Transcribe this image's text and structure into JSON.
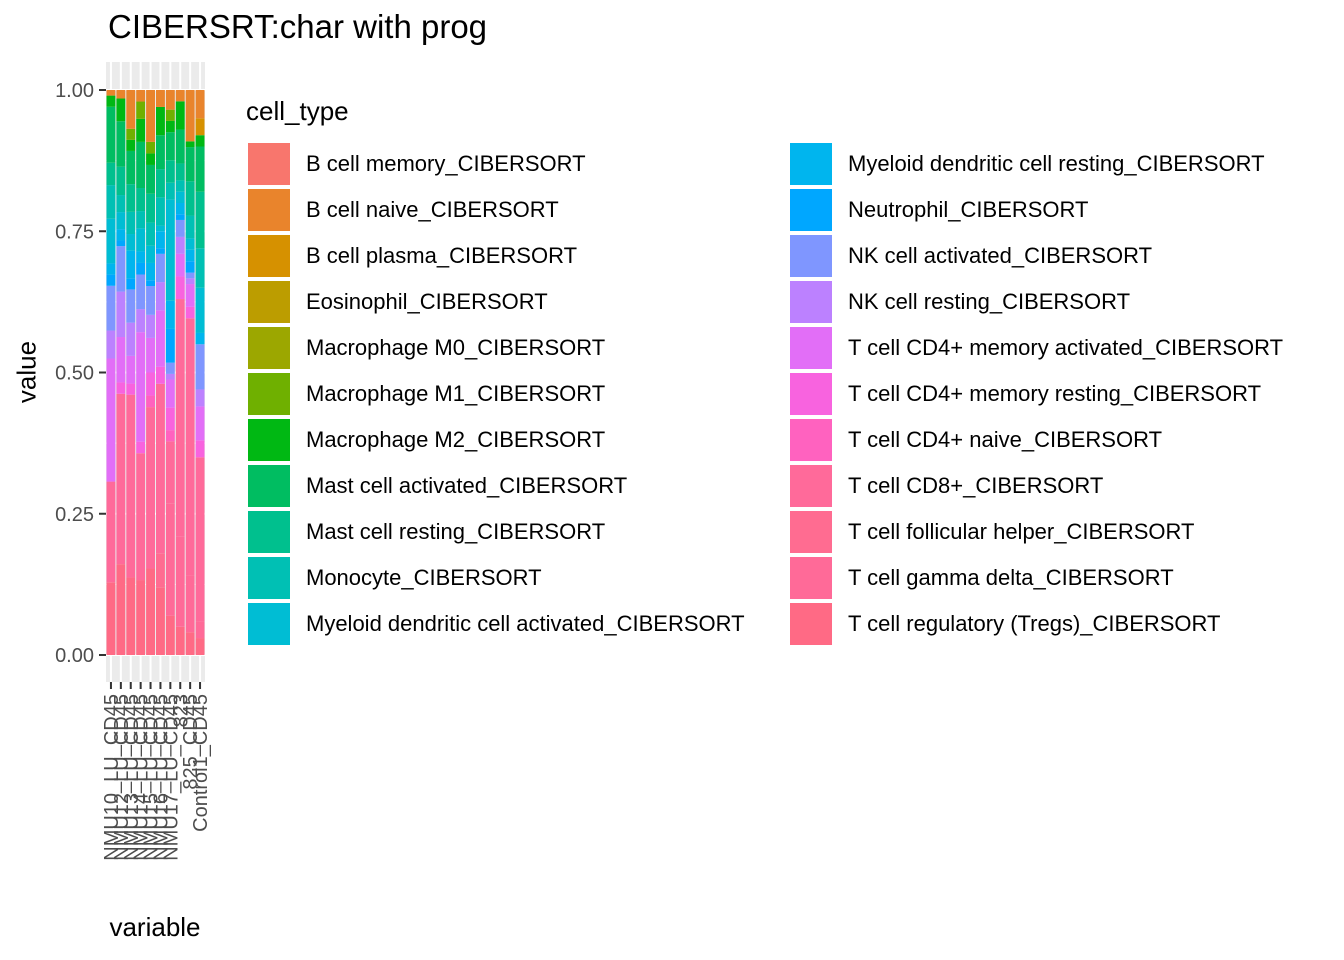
{
  "chart_data": {
    "type": "bar",
    "stacked": true,
    "normalized": true,
    "title": "CIBERSRT:char with prog",
    "xlabel": "variable",
    "ylabel": "value",
    "ylim": [
      0,
      1
    ],
    "yticks": [
      "0.00",
      "0.25",
      "0.50",
      "0.75",
      "1.00"
    ],
    "grid": true,
    "legend_title": "cell_type",
    "legend_position": "right",
    "categories": [
      "NMU10_LU_CD45",
      "NMU12_LU_CD45",
      "NMU13_LU_CD45",
      "NMU14_LU_CD45",
      "NMU15_LU_CD45",
      "NMU16_LU_CD45",
      "NMU17_LU_CD45",
      "823",
      "825_CD45",
      "Control1_CD45"
    ],
    "series": [
      {
        "name": "B cell memory_CIBERSORT",
        "color": "#F8766D",
        "values": [
          0,
          0,
          0,
          0,
          0,
          0,
          0,
          0,
          0,
          0
        ]
      },
      {
        "name": "B cell naive_CIBERSORT",
        "color": "#E9842C",
        "values": [
          0.01,
          0.015,
          0.07,
          0.02,
          0.09,
          0.03,
          0.035,
          0.02,
          0.09,
          0.05
        ]
      },
      {
        "name": "B cell plasma_CIBERSORT",
        "color": "#D69100",
        "values": [
          0,
          0,
          0,
          0,
          0,
          0,
          0,
          0,
          0,
          0.03
        ]
      },
      {
        "name": "Eosinophil_CIBERSORT",
        "color": "#BC9D00",
        "values": [
          0,
          0,
          0,
          0,
          0,
          0,
          0,
          0,
          0,
          0
        ]
      },
      {
        "name": "Macrophage M0_CIBERSORT",
        "color": "#9CA700",
        "values": [
          0,
          0,
          0,
          0,
          0,
          0,
          0,
          0,
          0,
          0
        ]
      },
      {
        "name": "Macrophage M1_CIBERSORT",
        "color": "#6FB000",
        "values": [
          0,
          0,
          0.02,
          0.03,
          0.02,
          0,
          0.02,
          0,
          0,
          0
        ]
      },
      {
        "name": "Macrophage M2_CIBERSORT",
        "color": "#00B813",
        "values": [
          0.02,
          0.04,
          0.02,
          0.04,
          0.02,
          0.05,
          0.02,
          0.05,
          0.01,
          0.02
        ]
      },
      {
        "name": "Mast cell activated_CIBERSORT",
        "color": "#00BD61",
        "values": [
          0.1,
          0.08,
          0.06,
          0.08,
          0.05,
          0.06,
          0.05,
          0.06,
          0.06,
          0.08
        ]
      },
      {
        "name": "Mast cell resting_CIBERSORT",
        "color": "#00C08E",
        "values": [
          0.04,
          0.05,
          0.05,
          0.04,
          0.05,
          0.05,
          0.04,
          0.03,
          0.06,
          0.1
        ]
      },
      {
        "name": "Monocyte_CIBERSORT",
        "color": "#00C0B4",
        "values": [
          0.06,
          0.03,
          0.04,
          0.03,
          0.04,
          0.05,
          0.03,
          0.02,
          0.04,
          0.07
        ]
      },
      {
        "name": "Myeloid dendritic cell activated_CIBERSORT",
        "color": "#00BDD4",
        "values": [
          0.08,
          0.03,
          0.03,
          0.04,
          0.03,
          0.01,
          0.18,
          0.02,
          0.02,
          0.08
        ]
      },
      {
        "name": "Myeloid dendritic cell resting_CIBERSORT",
        "color": "#00B5EE",
        "values": [
          0.02,
          0.02,
          0.05,
          0.02,
          0.03,
          0.03,
          0.05,
          0.02,
          0.02,
          0.02
        ]
      },
      {
        "name": "Neutrophil_CIBERSORT",
        "color": "#00A7FF",
        "values": [
          0.02,
          0.01,
          0.02,
          0.02,
          0.01,
          0.01,
          0.06,
          0.01,
          0.02,
          0
        ]
      },
      {
        "name": "NK cell activated_CIBERSORT",
        "color": "#7F96FF",
        "values": [
          0.08,
          0.08,
          0.06,
          0.06,
          0.05,
          0.05,
          0.02,
          0.03,
          0.01,
          0.08
        ]
      },
      {
        "name": "NK cell resting_CIBERSORT",
        "color": "#BC81FF",
        "values": [
          0.05,
          0.08,
          0.06,
          0.04,
          0.04,
          0.05,
          0.01,
          0.03,
          0.01,
          0.03
        ]
      },
      {
        "name": "T cell CD4+ memory activated_CIBERSORT",
        "color": "#E26EF7",
        "values": [
          0.22,
          0.08,
          0.05,
          0.19,
          0.06,
          0.1,
          0.05,
          0.04,
          0.04,
          0.06
        ]
      },
      {
        "name": "T cell CD4+ memory resting_CIBERSORT",
        "color": "#F863DF",
        "values": [
          0,
          0.02,
          0.02,
          0.02,
          0.04,
          0.03,
          0.04,
          0.04,
          0.02,
          0.03
        ]
      },
      {
        "name": "T cell CD4+ naive_CIBERSORT",
        "color": "#FF62BF",
        "values": [
          0,
          0,
          0,
          0,
          0.02,
          0,
          0.02,
          0,
          0,
          0
        ]
      },
      {
        "name": "T cell CD8+_CIBERSORT",
        "color": "#FF6A9A",
        "values": [
          0.18,
          0.3,
          0.33,
          0.22,
          0.28,
          0.3,
          0.11,
          0.42,
          0.45,
          0.29
        ]
      },
      {
        "name": "T cell follicular helper_CIBERSORT",
        "color": "#F8766D",
        "values": [
          0,
          0,
          0,
          0,
          0,
          0.06,
          0,
          0,
          0,
          0
        ]
      },
      {
        "name": "T cell gamma delta_CIBERSORT",
        "color": "#E9842C",
        "values": [
          0,
          0,
          0,
          0,
          0,
          0,
          0.2,
          0.16,
          0.1,
          0.03
        ]
      },
      {
        "name": "T cell regulatory (Tregs)_CIBERSORT",
        "color": "#D69100",
        "values": [
          0.13,
          0.16,
          0.14,
          0.13,
          0.15,
          0.12,
          0.07,
          0.05,
          0.04,
          0.03
        ]
      }
    ]
  },
  "legend_colors": [
    "#F8766D",
    "#E9842C",
    "#D69100",
    "#BC9D00",
    "#9CA700",
    "#6FB000",
    "#00B813",
    "#00BD61",
    "#00C08E",
    "#00C0B4",
    "#00BDD4",
    "#00B5EE",
    "#00A7FF",
    "#7F96FF",
    "#BC81FF",
    "#E26EF7",
    "#F863DF",
    "#FF62BF",
    "#FF6A9A",
    "#FF6C91",
    "#FF6A98",
    "#FF6A85"
  ]
}
